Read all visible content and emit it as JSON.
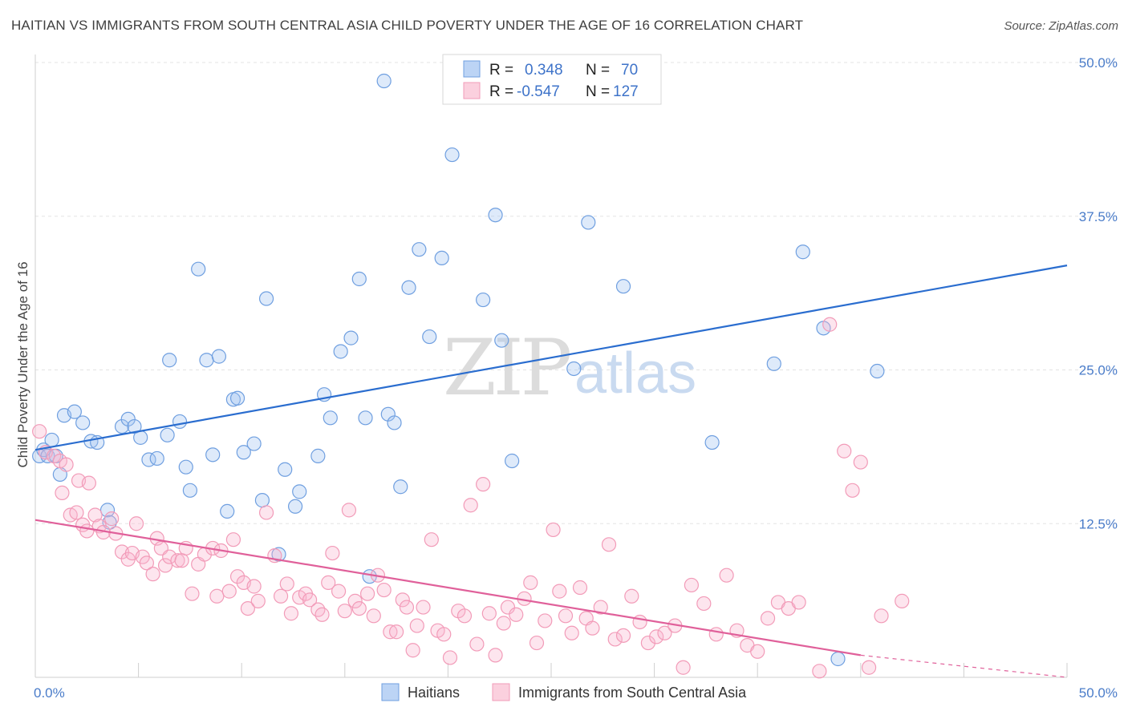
{
  "title": "HAITIAN VS IMMIGRANTS FROM SOUTH CENTRAL ASIA CHILD POVERTY UNDER THE AGE OF 16 CORRELATION CHART",
  "source": "Source: ZipAtlas.com",
  "watermark": {
    "zip": "ZIP",
    "atlas": "atlas"
  },
  "chart_data": {
    "type": "scatter",
    "ylabel": "Child Poverty Under the Age of 16",
    "xlabel": "",
    "xlim": [
      0,
      50
    ],
    "ylim": [
      0,
      50
    ],
    "x_tick_labels": [
      {
        "value": 0,
        "label": "0.0%"
      },
      {
        "value": 50,
        "label": "50.0%"
      }
    ],
    "y_tick_labels": [
      {
        "value": 12.5,
        "label": "12.5%"
      },
      {
        "value": 25,
        "label": "25.0%"
      },
      {
        "value": 37.5,
        "label": "37.5%"
      },
      {
        "value": 50,
        "label": "50.0%"
      }
    ],
    "grid": true,
    "legend_position": "top-center",
    "series": [
      {
        "name": "Haitians",
        "color": "#6f9fe0",
        "line_color": "#2a6dcf",
        "r_label": "R =",
        "r": "0.348",
        "n_label": "N =",
        "n": "70",
        "trend": {
          "x": [
            0,
            50
          ],
          "y": [
            18.5,
            33.5
          ]
        },
        "points": [
          [
            0.2,
            18.0
          ],
          [
            0.4,
            18.5
          ],
          [
            0.6,
            18.0
          ],
          [
            0.8,
            19.3
          ],
          [
            1.0,
            18.0
          ],
          [
            1.2,
            16.5
          ],
          [
            1.4,
            21.3
          ],
          [
            1.9,
            21.6
          ],
          [
            2.3,
            20.7
          ],
          [
            2.7,
            19.2
          ],
          [
            3.0,
            19.1
          ],
          [
            3.5,
            13.6
          ],
          [
            3.6,
            12.6
          ],
          [
            4.2,
            20.4
          ],
          [
            4.5,
            21.0
          ],
          [
            4.8,
            20.4
          ],
          [
            5.1,
            19.5
          ],
          [
            5.5,
            17.7
          ],
          [
            5.9,
            17.8
          ],
          [
            6.4,
            19.7
          ],
          [
            6.5,
            25.8
          ],
          [
            7.0,
            20.8
          ],
          [
            7.3,
            17.1
          ],
          [
            7.5,
            15.2
          ],
          [
            7.9,
            33.2
          ],
          [
            8.3,
            25.8
          ],
          [
            8.6,
            18.1
          ],
          [
            8.9,
            26.1
          ],
          [
            9.3,
            13.5
          ],
          [
            9.6,
            22.6
          ],
          [
            9.8,
            22.7
          ],
          [
            10.1,
            18.3
          ],
          [
            10.6,
            19.0
          ],
          [
            11.0,
            14.4
          ],
          [
            11.2,
            30.8
          ],
          [
            11.8,
            10.0
          ],
          [
            12.1,
            16.9
          ],
          [
            12.6,
            13.9
          ],
          [
            12.8,
            15.1
          ],
          [
            13.7,
            18.0
          ],
          [
            14.0,
            23.0
          ],
          [
            14.3,
            21.1
          ],
          [
            14.8,
            26.5
          ],
          [
            15.3,
            27.6
          ],
          [
            15.7,
            32.4
          ],
          [
            16.0,
            21.1
          ],
          [
            16.2,
            8.2
          ],
          [
            16.9,
            48.5
          ],
          [
            17.1,
            21.4
          ],
          [
            17.4,
            20.7
          ],
          [
            17.7,
            15.5
          ],
          [
            18.1,
            31.7
          ],
          [
            18.6,
            34.8
          ],
          [
            19.1,
            27.7
          ],
          [
            19.7,
            34.1
          ],
          [
            20.2,
            42.5
          ],
          [
            21.7,
            30.7
          ],
          [
            22.3,
            37.6
          ],
          [
            22.6,
            27.4
          ],
          [
            23.1,
            17.6
          ],
          [
            26.1,
            25.1
          ],
          [
            26.8,
            37.0
          ],
          [
            27.6,
            47.3
          ],
          [
            28.5,
            31.8
          ],
          [
            32.8,
            19.1
          ],
          [
            35.8,
            25.5
          ],
          [
            37.2,
            34.6
          ],
          [
            38.2,
            28.4
          ],
          [
            38.9,
            1.5
          ],
          [
            40.8,
            24.9
          ]
        ]
      },
      {
        "name": "Immigrants from South Central Asia",
        "color": "#f29bb8",
        "line_color": "#e0609a",
        "r_label": "R =",
        "r": "-0.547",
        "n_label": "N =",
        "n": "127",
        "trend": {
          "x": [
            0,
            40
          ],
          "y": [
            12.8,
            1.8
          ]
        },
        "trend_dashed": {
          "x": [
            40,
            50
          ],
          "y": [
            1.8,
            -0.9
          ]
        },
        "points": [
          [
            0.2,
            20.0
          ],
          [
            0.5,
            18.3
          ],
          [
            0.9,
            18.0
          ],
          [
            1.2,
            17.6
          ],
          [
            1.3,
            15.0
          ],
          [
            1.5,
            17.3
          ],
          [
            1.7,
            13.2
          ],
          [
            2.0,
            13.4
          ],
          [
            2.1,
            16.0
          ],
          [
            2.3,
            12.4
          ],
          [
            2.5,
            11.9
          ],
          [
            2.6,
            15.8
          ],
          [
            2.9,
            13.2
          ],
          [
            3.1,
            12.3
          ],
          [
            3.3,
            11.8
          ],
          [
            3.7,
            12.9
          ],
          [
            3.9,
            11.7
          ],
          [
            4.2,
            10.2
          ],
          [
            4.5,
            9.6
          ],
          [
            4.7,
            10.1
          ],
          [
            4.9,
            12.5
          ],
          [
            5.2,
            9.8
          ],
          [
            5.4,
            9.3
          ],
          [
            5.7,
            8.4
          ],
          [
            5.9,
            11.3
          ],
          [
            6.1,
            10.5
          ],
          [
            6.3,
            9.1
          ],
          [
            6.5,
            9.8
          ],
          [
            6.9,
            9.5
          ],
          [
            7.1,
            9.5
          ],
          [
            7.3,
            10.5
          ],
          [
            7.6,
            6.8
          ],
          [
            7.9,
            9.2
          ],
          [
            8.2,
            10.0
          ],
          [
            8.6,
            10.5
          ],
          [
            8.8,
            6.6
          ],
          [
            9.0,
            10.3
          ],
          [
            9.4,
            7.0
          ],
          [
            9.6,
            11.2
          ],
          [
            9.8,
            8.2
          ],
          [
            10.1,
            7.7
          ],
          [
            10.3,
            5.6
          ],
          [
            10.6,
            7.4
          ],
          [
            10.8,
            6.2
          ],
          [
            11.2,
            13.4
          ],
          [
            11.6,
            9.9
          ],
          [
            11.9,
            6.6
          ],
          [
            12.2,
            7.6
          ],
          [
            12.4,
            5.2
          ],
          [
            12.8,
            6.5
          ],
          [
            13.1,
            6.8
          ],
          [
            13.3,
            6.3
          ],
          [
            13.7,
            5.5
          ],
          [
            13.9,
            5.1
          ],
          [
            14.2,
            7.7
          ],
          [
            14.4,
            10.1
          ],
          [
            14.7,
            7.0
          ],
          [
            15.0,
            5.4
          ],
          [
            15.2,
            13.6
          ],
          [
            15.5,
            6.2
          ],
          [
            15.7,
            5.6
          ],
          [
            16.1,
            6.8
          ],
          [
            16.4,
            5.0
          ],
          [
            16.6,
            8.3
          ],
          [
            16.9,
            7.1
          ],
          [
            17.2,
            3.7
          ],
          [
            17.5,
            3.7
          ],
          [
            17.8,
            6.3
          ],
          [
            18.0,
            5.7
          ],
          [
            18.3,
            2.2
          ],
          [
            18.5,
            4.2
          ],
          [
            18.8,
            5.7
          ],
          [
            19.2,
            11.2
          ],
          [
            19.5,
            3.8
          ],
          [
            19.8,
            3.5
          ],
          [
            20.1,
            1.6
          ],
          [
            20.5,
            5.4
          ],
          [
            20.8,
            5.0
          ],
          [
            21.1,
            14.0
          ],
          [
            21.4,
            2.7
          ],
          [
            21.7,
            15.7
          ],
          [
            22.0,
            5.2
          ],
          [
            22.3,
            1.8
          ],
          [
            22.7,
            4.4
          ],
          [
            22.9,
            5.7
          ],
          [
            23.3,
            5.1
          ],
          [
            23.7,
            6.4
          ],
          [
            24.0,
            7.7
          ],
          [
            24.3,
            2.8
          ],
          [
            24.7,
            4.6
          ],
          [
            25.1,
            12.0
          ],
          [
            25.4,
            7.0
          ],
          [
            25.7,
            5.0
          ],
          [
            26.0,
            3.6
          ],
          [
            26.4,
            7.3
          ],
          [
            26.7,
            4.8
          ],
          [
            27.0,
            4.0
          ],
          [
            27.4,
            5.7
          ],
          [
            27.8,
            10.8
          ],
          [
            28.1,
            3.1
          ],
          [
            28.5,
            3.4
          ],
          [
            28.9,
            6.6
          ],
          [
            29.3,
            4.5
          ],
          [
            29.7,
            2.8
          ],
          [
            30.1,
            3.3
          ],
          [
            30.5,
            3.6
          ],
          [
            31.0,
            4.2
          ],
          [
            31.4,
            0.8
          ],
          [
            31.8,
            7.5
          ],
          [
            32.4,
            6.0
          ],
          [
            33.0,
            3.5
          ],
          [
            33.5,
            8.3
          ],
          [
            34.0,
            3.8
          ],
          [
            34.5,
            2.6
          ],
          [
            35.0,
            2.1
          ],
          [
            35.5,
            4.8
          ],
          [
            36.0,
            6.1
          ],
          [
            36.5,
            5.6
          ],
          [
            37.0,
            6.1
          ],
          [
            38.0,
            0.5
          ],
          [
            38.5,
            28.7
          ],
          [
            39.2,
            18.4
          ],
          [
            39.6,
            15.2
          ],
          [
            40.0,
            17.5
          ],
          [
            40.4,
            0.8
          ],
          [
            41.0,
            5.0
          ],
          [
            42.0,
            6.2
          ]
        ]
      }
    ]
  }
}
